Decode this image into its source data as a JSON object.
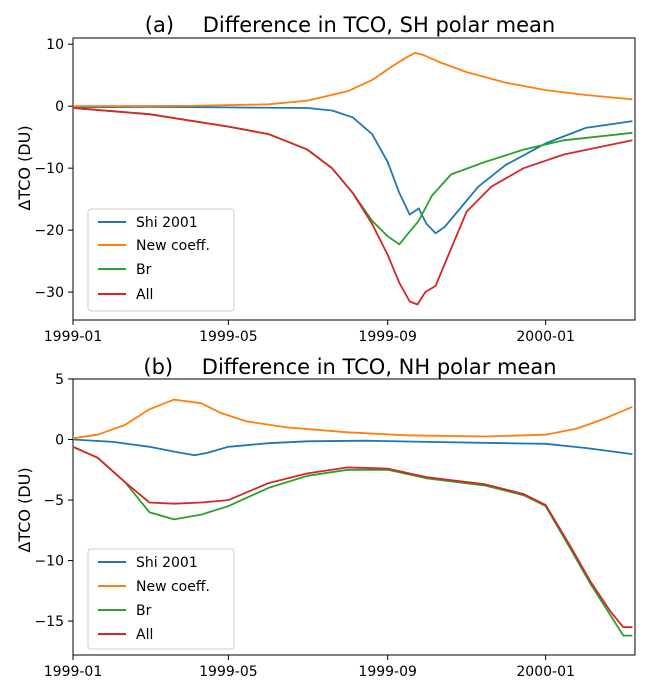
{
  "chart_data": [
    {
      "type": "line",
      "panel_label": "(a)",
      "title": "Difference in TCO, SH polar mean",
      "xlabel": "",
      "ylabel": "ΔTCO (DU)",
      "xlim": [
        "1999-01-01",
        "2000-03-10"
      ],
      "ylim": [
        -34.5,
        11
      ],
      "x_ticks": [
        "1999-01",
        "1999-05",
        "1999-09",
        "2000-01"
      ],
      "y_ticks": [
        10,
        0,
        -10,
        -20,
        -30
      ],
      "grid": false,
      "legend_position": "lower-left",
      "series": [
        {
          "name": "Shi 2001",
          "color": "#1f77b4",
          "points": [
            [
              "1999-01-01",
              -0.2
            ],
            [
              "1999-03-01",
              -0.1
            ],
            [
              "1999-05-01",
              -0.2
            ],
            [
              "1999-07-01",
              -0.3
            ],
            [
              "1999-07-20",
              -0.7
            ],
            [
              "1999-08-05",
              -1.8
            ],
            [
              "1999-08-20",
              -4.5
            ],
            [
              "1999-09-01",
              -9
            ],
            [
              "1999-09-10",
              -14
            ],
            [
              "1999-09-18",
              -17.5
            ],
            [
              "1999-09-25",
              -16.5
            ],
            [
              "1999-10-01",
              -19
            ],
            [
              "1999-10-08",
              -20.5
            ],
            [
              "1999-10-15",
              -19.5
            ],
            [
              "1999-10-25",
              -17
            ],
            [
              "1999-11-10",
              -13
            ],
            [
              "1999-12-01",
              -9.5
            ],
            [
              "2000-01-01",
              -6
            ],
            [
              "2000-02-01",
              -3.5
            ],
            [
              "2000-03-08",
              -2.4
            ]
          ]
        },
        {
          "name": "New coeff.",
          "color": "#ff7f0e",
          "points": [
            [
              "1999-01-01",
              0
            ],
            [
              "1999-04-01",
              0.05
            ],
            [
              "1999-06-01",
              0.3
            ],
            [
              "1999-07-01",
              0.9
            ],
            [
              "1999-08-01",
              2.4
            ],
            [
              "1999-08-20",
              4.2
            ],
            [
              "1999-09-05",
              6.5
            ],
            [
              "1999-09-15",
              7.8
            ],
            [
              "1999-09-22",
              8.6
            ],
            [
              "1999-09-28",
              8.3
            ],
            [
              "1999-10-10",
              7.2
            ],
            [
              "1999-11-01",
              5.5
            ],
            [
              "1999-12-01",
              3.8
            ],
            [
              "2000-01-01",
              2.6
            ],
            [
              "2000-02-01",
              1.8
            ],
            [
              "2000-03-08",
              1.1
            ]
          ]
        },
        {
          "name": "Br",
          "color": "#2ca02c",
          "points": [
            [
              "1999-01-01",
              -0.3
            ],
            [
              "1999-03-01",
              -1.3
            ],
            [
              "1999-05-01",
              -3.3
            ],
            [
              "1999-06-01",
              -4.5
            ],
            [
              "1999-07-01",
              -7
            ],
            [
              "1999-07-20",
              -10
            ],
            [
              "1999-08-05",
              -14
            ],
            [
              "1999-08-20",
              -18.5
            ],
            [
              "1999-09-01",
              -21
            ],
            [
              "1999-09-10",
              -22.3
            ],
            [
              "1999-09-17",
              -20.5
            ],
            [
              "1999-09-25",
              -18.5
            ],
            [
              "1999-10-05",
              -14.5
            ],
            [
              "1999-10-20",
              -11
            ],
            [
              "1999-11-15",
              -9
            ],
            [
              "1999-12-15",
              -7
            ],
            [
              "2000-01-15",
              -5.5
            ],
            [
              "2000-03-08",
              -4.3
            ]
          ]
        },
        {
          "name": "All",
          "color": "#d62728",
          "points": [
            [
              "1999-01-01",
              -0.3
            ],
            [
              "1999-03-01",
              -1.3
            ],
            [
              "1999-05-01",
              -3.3
            ],
            [
              "1999-06-01",
              -4.5
            ],
            [
              "1999-07-01",
              -7
            ],
            [
              "1999-07-20",
              -10
            ],
            [
              "1999-08-05",
              -14
            ],
            [
              "1999-08-20",
              -19
            ],
            [
              "1999-09-01",
              -24
            ],
            [
              "1999-09-10",
              -28.5
            ],
            [
              "1999-09-18",
              -31.5
            ],
            [
              "1999-09-24",
              -32
            ],
            [
              "1999-09-30",
              -30
            ],
            [
              "1999-10-08",
              -29
            ],
            [
              "1999-10-18",
              -24
            ],
            [
              "1999-11-01",
              -17
            ],
            [
              "1999-11-20",
              -13
            ],
            [
              "1999-12-15",
              -10
            ],
            [
              "2000-01-15",
              -7.8
            ],
            [
              "2000-03-08",
              -5.5
            ]
          ]
        }
      ]
    },
    {
      "type": "line",
      "panel_label": "(b)",
      "title": "Difference in TCO, NH polar mean",
      "xlabel": "",
      "ylabel": "ΔTCO (DU)",
      "xlim": [
        "1999-01-01",
        "2000-03-10"
      ],
      "ylim": [
        -17.8,
        5
      ],
      "x_ticks": [
        "1999-01",
        "1999-05",
        "1999-09",
        "2000-01"
      ],
      "y_ticks": [
        5,
        0,
        -5,
        -10,
        -15
      ],
      "grid": false,
      "legend_position": "lower-left",
      "series": [
        {
          "name": "Shi 2001",
          "color": "#1f77b4",
          "points": [
            [
              "1999-01-01",
              0
            ],
            [
              "1999-02-01",
              -0.2
            ],
            [
              "1999-03-01",
              -0.6
            ],
            [
              "1999-03-20",
              -1
            ],
            [
              "1999-04-05",
              -1.3
            ],
            [
              "1999-04-15",
              -1.1
            ],
            [
              "1999-05-01",
              -0.6
            ],
            [
              "1999-06-01",
              -0.3
            ],
            [
              "1999-07-01",
              -0.15
            ],
            [
              "1999-08-15",
              -0.1
            ],
            [
              "1999-10-01",
              -0.2
            ],
            [
              "1999-12-01",
              -0.3
            ],
            [
              "2000-01-01",
              -0.35
            ],
            [
              "2000-02-01",
              -0.7
            ],
            [
              "2000-03-08",
              -1.2
            ]
          ]
        },
        {
          "name": "New coeff.",
          "color": "#ff7f0e",
          "points": [
            [
              "1999-01-01",
              0.1
            ],
            [
              "1999-01-20",
              0.4
            ],
            [
              "1999-02-10",
              1.2
            ],
            [
              "1999-03-01",
              2.5
            ],
            [
              "1999-03-20",
              3.3
            ],
            [
              "1999-04-10",
              3
            ],
            [
              "1999-04-25",
              2.2
            ],
            [
              "1999-05-15",
              1.5
            ],
            [
              "1999-06-15",
              1
            ],
            [
              "1999-08-01",
              0.6
            ],
            [
              "1999-09-15",
              0.35
            ],
            [
              "1999-11-15",
              0.25
            ],
            [
              "2000-01-01",
              0.4
            ],
            [
              "2000-01-25",
              0.9
            ],
            [
              "2000-02-15",
              1.7
            ],
            [
              "2000-03-08",
              2.7
            ]
          ]
        },
        {
          "name": "Br",
          "color": "#2ca02c",
          "points": [
            [
              "1999-01-01",
              -0.6
            ],
            [
              "1999-01-20",
              -1.5
            ],
            [
              "1999-02-10",
              -3.5
            ],
            [
              "1999-03-01",
              -6
            ],
            [
              "1999-03-20",
              -6.6
            ],
            [
              "1999-04-10",
              -6.2
            ],
            [
              "1999-05-01",
              -5.5
            ],
            [
              "1999-06-01",
              -4
            ],
            [
              "1999-07-01",
              -3
            ],
            [
              "1999-08-01",
              -2.5
            ],
            [
              "1999-09-01",
              -2.5
            ],
            [
              "1999-10-01",
              -3.2
            ],
            [
              "1999-11-15",
              -3.8
            ],
            [
              "1999-12-15",
              -4.6
            ],
            [
              "2000-01-01",
              -5.5
            ],
            [
              "2000-01-20",
              -9
            ],
            [
              "2000-02-05",
              -12
            ],
            [
              "2000-02-20",
              -14.5
            ],
            [
              "2000-03-01",
              -16.2
            ],
            [
              "2000-03-08",
              -16.2
            ]
          ]
        },
        {
          "name": "All",
          "color": "#d62728",
          "points": [
            [
              "1999-01-01",
              -0.6
            ],
            [
              "1999-01-20",
              -1.5
            ],
            [
              "1999-02-10",
              -3.5
            ],
            [
              "1999-03-01",
              -5.2
            ],
            [
              "1999-03-20",
              -5.3
            ],
            [
              "1999-04-10",
              -5.2
            ],
            [
              "1999-05-01",
              -5
            ],
            [
              "1999-06-01",
              -3.6
            ],
            [
              "1999-07-01",
              -2.8
            ],
            [
              "1999-08-01",
              -2.3
            ],
            [
              "1999-09-01",
              -2.4
            ],
            [
              "1999-10-01",
              -3.1
            ],
            [
              "1999-11-15",
              -3.7
            ],
            [
              "1999-12-15",
              -4.5
            ],
            [
              "2000-01-01",
              -5.4
            ],
            [
              "2000-01-20",
              -8.8
            ],
            [
              "2000-02-05",
              -11.8
            ],
            [
              "2000-02-20",
              -14.2
            ],
            [
              "2000-03-01",
              -15.5
            ],
            [
              "2000-03-08",
              -15.5
            ]
          ]
        }
      ]
    }
  ]
}
